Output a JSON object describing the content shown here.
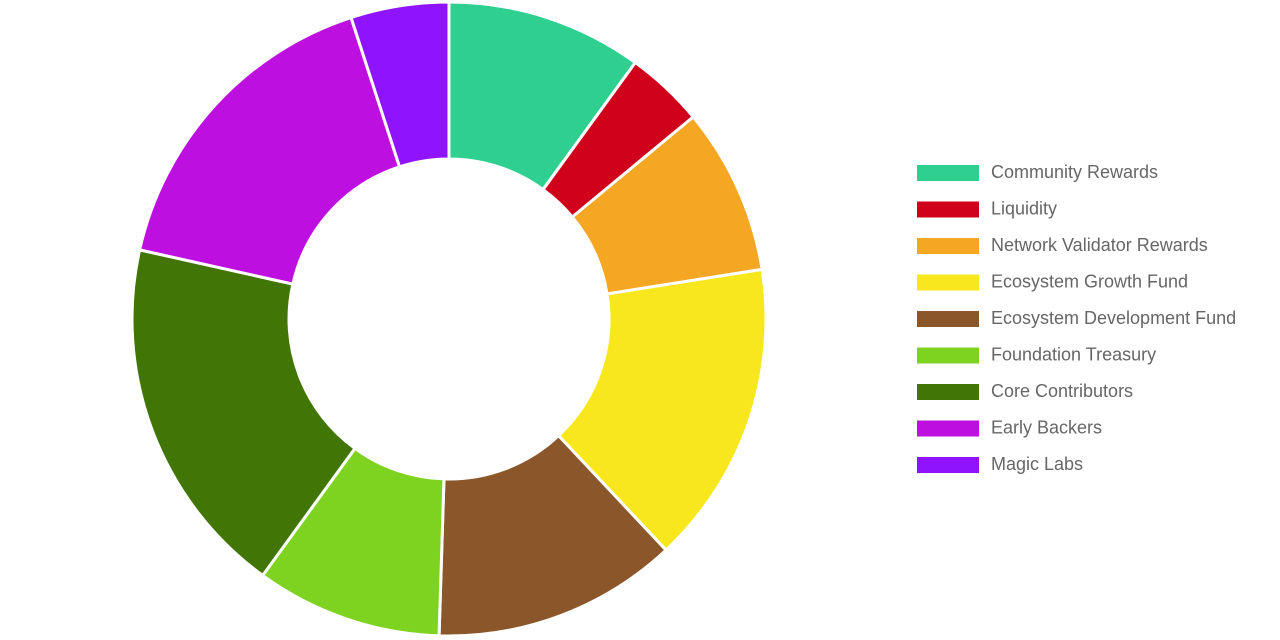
{
  "chart_data": {
    "type": "doughnut",
    "categories": [
      "Community Rewards",
      "Liquidity",
      "Network Validator Rewards",
      "Ecosystem Growth Fund",
      "Ecosystem Development Fund",
      "Foundation Treasury",
      "Core Contributors",
      "Early Backers",
      "Magic Labs"
    ],
    "values": [
      10,
      4,
      8.5,
      15.5,
      12.5,
      9.5,
      18.5,
      16.5,
      5
    ],
    "colors": [
      "#2ecf8f",
      "#d0021b",
      "#f5a623",
      "#f8e71c",
      "#8b572a",
      "#7ed321",
      "#417505",
      "#bd10e0",
      "#9013fe"
    ],
    "legend": "right"
  }
}
